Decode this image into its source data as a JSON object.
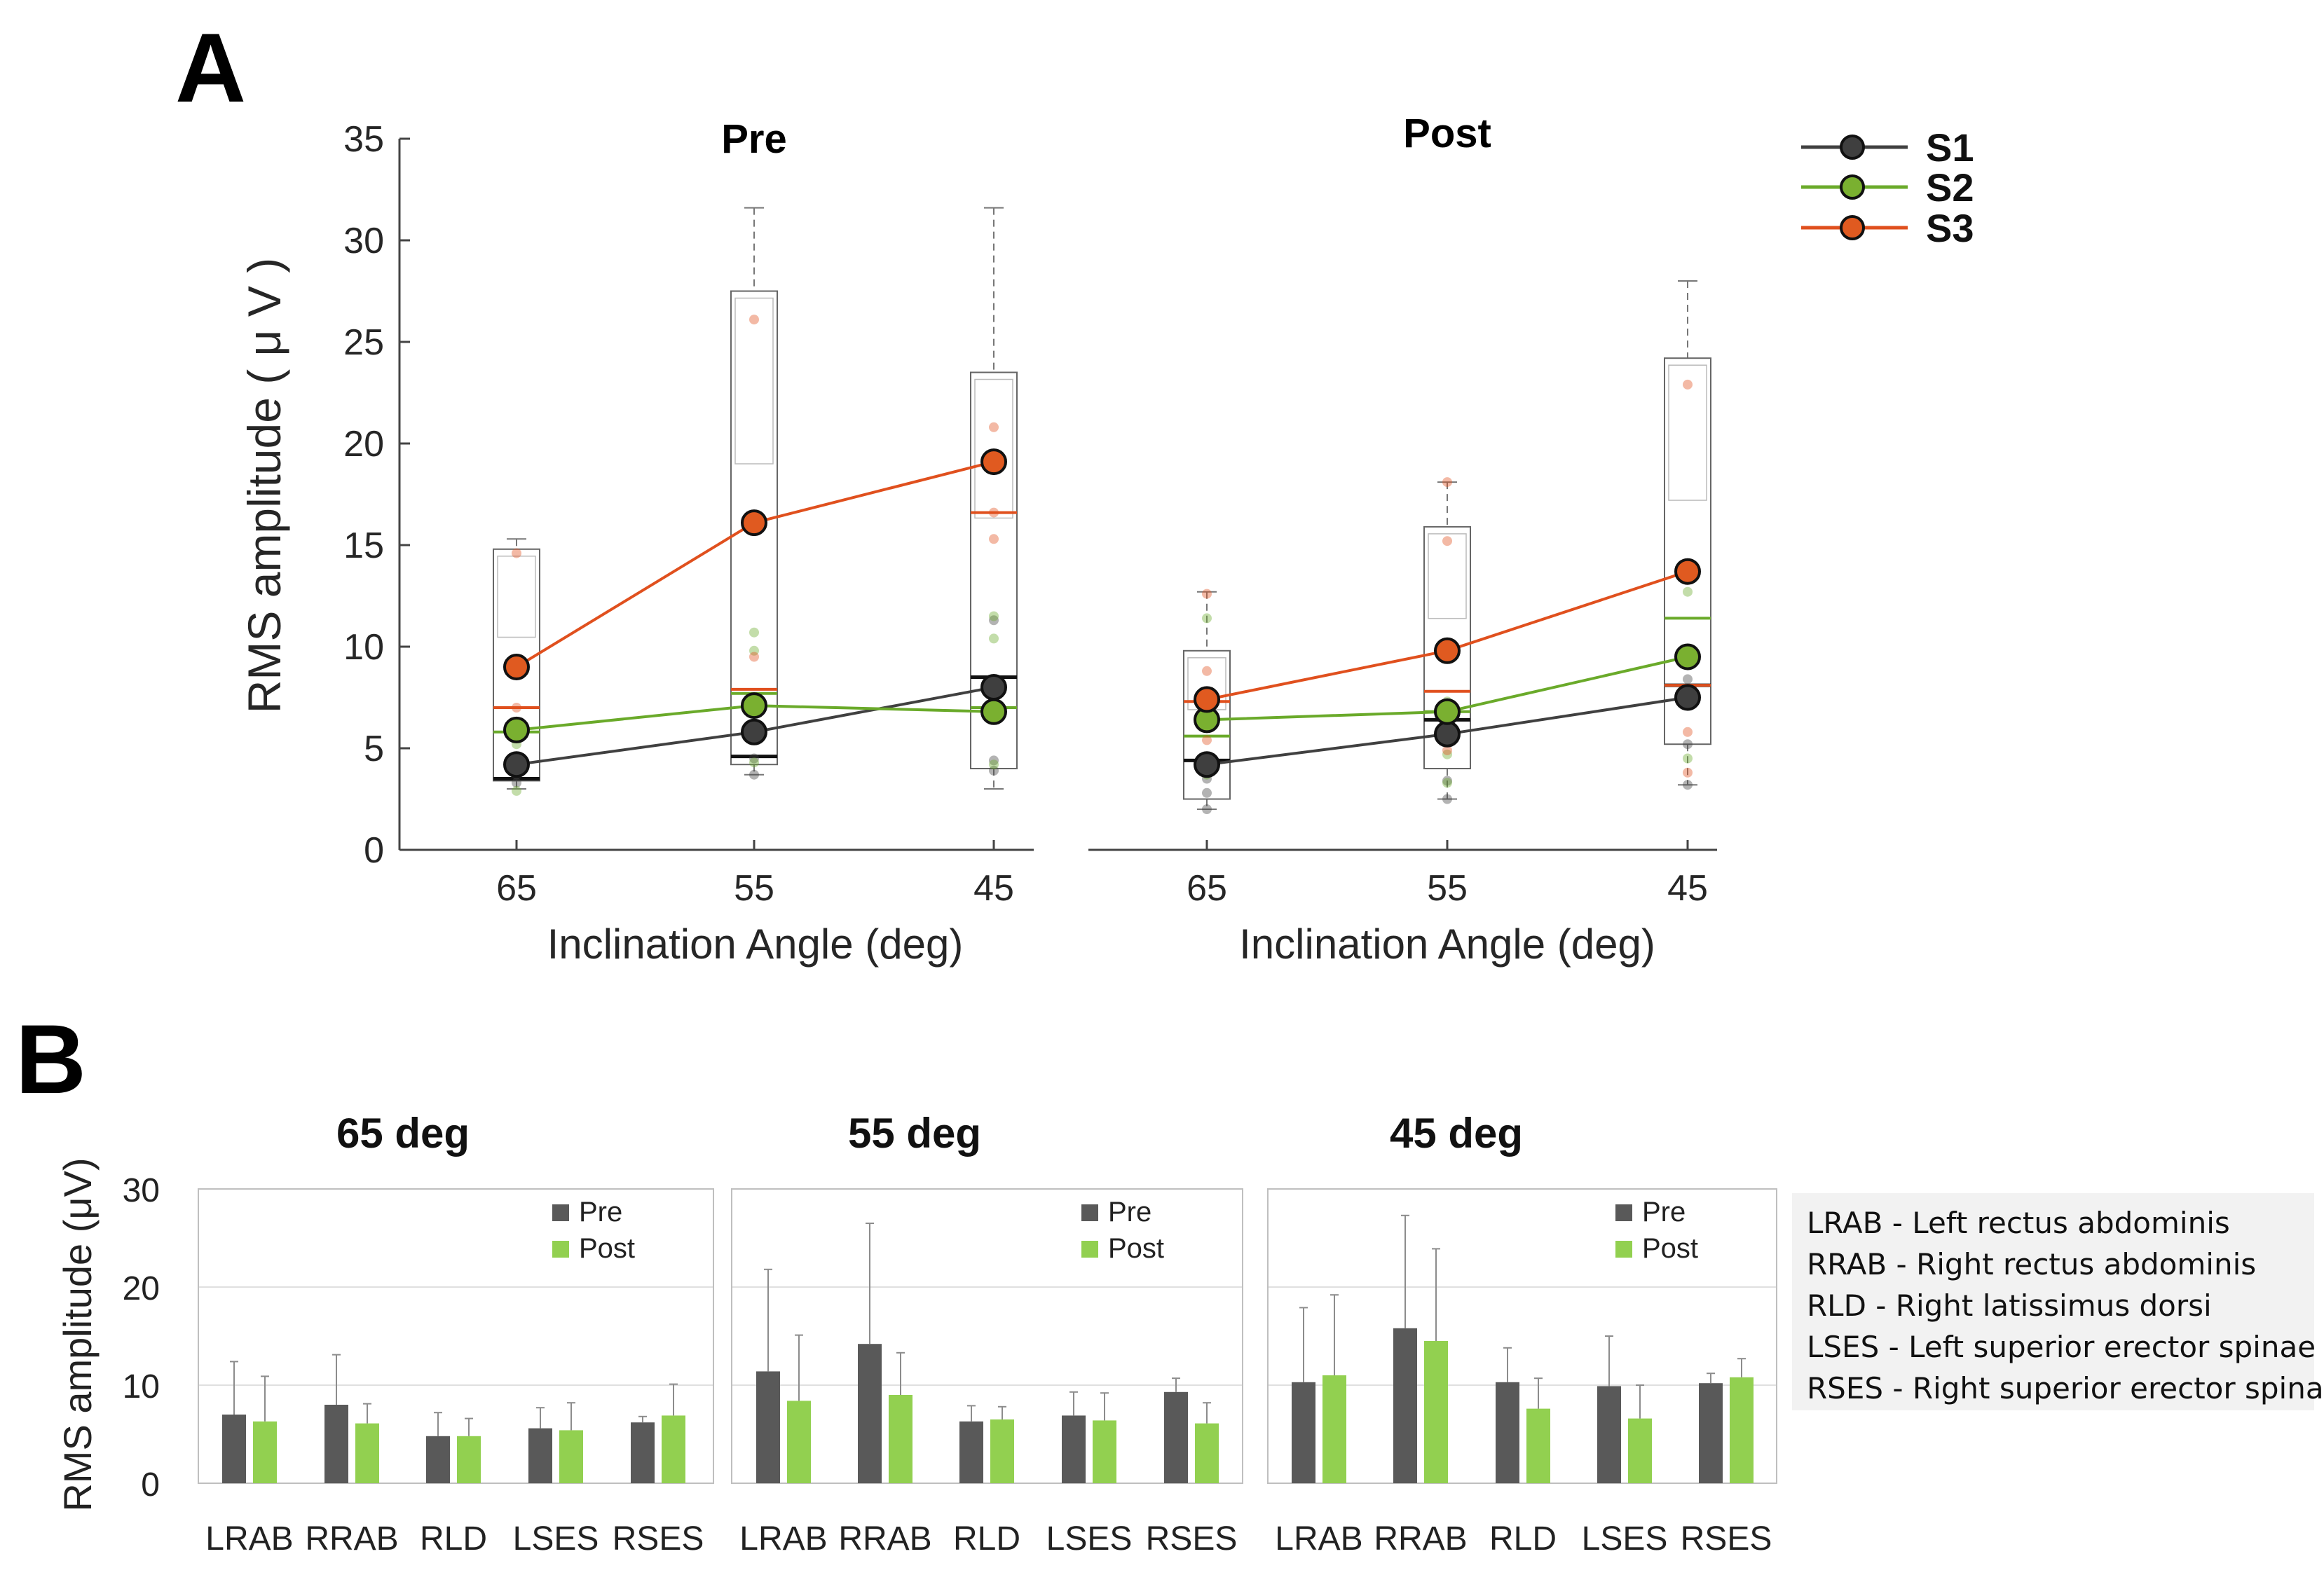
{
  "figure": {
    "panel_a_label": "A",
    "panel_b_label": "B"
  },
  "colors": {
    "s1": "#404040",
    "s2": "#6aaa2a",
    "s3": "#e0501e",
    "pre_bar": "#595959",
    "post_bar": "#92d050",
    "s1_fill": "#3f3f3f",
    "s2_fill": "#7ab030",
    "s3_fill": "#e05a20"
  },
  "chart_data": [
    {
      "id": "panel-a",
      "type": "line",
      "subtype": "box-with-means",
      "ylabel": "RMS amplitude ( μ V )",
      "xlabel": "Inclination Angle (deg)",
      "ylim": [
        0,
        35
      ],
      "yticks": [
        0,
        5,
        10,
        15,
        20,
        25,
        30,
        35
      ],
      "categories": [
        "65",
        "55",
        "45"
      ],
      "legend": [
        "S1",
        "S2",
        "S3"
      ],
      "legend_position": "top-right",
      "groups": [
        {
          "title": "Pre",
          "series": [
            {
              "name": "S1",
              "values": [
                4.2,
                5.8,
                8.0
              ]
            },
            {
              "name": "S2",
              "values": [
                5.9,
                7.1,
                6.8
              ]
            },
            {
              "name": "S3",
              "values": [
                9.0,
                16.1,
                19.1
              ]
            }
          ],
          "boxes": [
            {
              "whisker_low": 3.0,
              "q1": 3.4,
              "q3": 14.8,
              "whisker_high": 15.3,
              "medians": {
                "S1": 3.5,
                "S2": 5.8,
                "S3": 7.0
              },
              "points": {
                "S1": [
                  3.3,
                  3.7,
                  4.5
                ],
                "S2": [
                  2.9,
                  5.2,
                  6.0
                ],
                "S3": [
                  7.0,
                  8.7,
                  14.6
                ]
              }
            },
            {
              "whisker_low": 3.7,
              "q1": 4.2,
              "q3": 27.5,
              "whisker_high": 31.6,
              "medians": {
                "S1": 4.6,
                "S2": 7.7,
                "S3": 7.9
              },
              "points": {
                "S1": [
                  3.7,
                  4.5,
                  6.0
                ],
                "S2": [
                  4.3,
                  9.8,
                  10.7
                ],
                "S3": [
                  7.2,
                  9.5,
                  26.1
                ]
              }
            },
            {
              "whisker_low": 3.0,
              "q1": 4.0,
              "q3": 23.5,
              "whisker_high": 31.6,
              "medians": {
                "S1": 8.5,
                "S2": 7.0,
                "S3": 16.6
              },
              "points": {
                "S1": [
                  3.9,
                  4.4,
                  11.3
                ],
                "S2": [
                  4.2,
                  10.4,
                  11.5
                ],
                "S3": [
                  15.3,
                  16.6,
                  20.8
                ]
              }
            }
          ]
        },
        {
          "title": "Post",
          "series": [
            {
              "name": "S1",
              "values": [
                4.2,
                5.7,
                7.5
              ]
            },
            {
              "name": "S2",
              "values": [
                6.4,
                6.8,
                9.5
              ]
            },
            {
              "name": "S3",
              "values": [
                7.4,
                9.8,
                13.7
              ]
            }
          ],
          "boxes": [
            {
              "whisker_low": 2.0,
              "q1": 2.5,
              "q3": 9.8,
              "whisker_high": 12.7,
              "medians": {
                "S1": 4.4,
                "S2": 5.6,
                "S3": 7.3
              },
              "points": {
                "S1": [
                  2.0,
                  2.8,
                  3.5
                ],
                "S2": [
                  3.7,
                  6.1,
                  11.4
                ],
                "S3": [
                  5.4,
                  8.8,
                  12.6
                ]
              }
            },
            {
              "whisker_low": 2.5,
              "q1": 4.0,
              "q3": 15.9,
              "whisker_high": 18.1,
              "medians": {
                "S1": 6.4,
                "S2": 6.8,
                "S3": 7.8
              },
              "points": {
                "S1": [
                  2.5,
                  3.4,
                  6.4
                ],
                "S2": [
                  3.3,
                  4.7,
                  7.3
                ],
                "S3": [
                  4.9,
                  15.2,
                  18.1
                ]
              }
            },
            {
              "whisker_low": 3.2,
              "q1": 5.2,
              "q3": 24.2,
              "whisker_high": 28.0,
              "medians": {
                "S1": 8.1,
                "S2": 11.4,
                "S3": 8.1
              },
              "points": {
                "S1": [
                  3.2,
                  5.2,
                  8.4
                ],
                "S2": [
                  4.5,
                  9.2,
                  12.7
                ],
                "S3": [
                  3.8,
                  5.8,
                  22.9
                ]
              }
            }
          ]
        }
      ]
    },
    {
      "id": "panel-b",
      "type": "bar",
      "ylabel": "RMS amplitude (μV)",
      "ylim": [
        0,
        30
      ],
      "yticks": [
        0,
        10,
        20,
        30
      ],
      "categories": [
        "LRAB",
        "RRAB",
        "RLD",
        "LSES",
        "RSES"
      ],
      "legend": [
        "Pre",
        "Post"
      ],
      "legend_position": "top-right",
      "groups": [
        {
          "title": "65 deg",
          "series": [
            {
              "name": "Pre",
              "values": [
                7.0,
                8.0,
                4.8,
                5.6,
                6.2
              ],
              "errors": [
                5.4,
                5.1,
                2.4,
                2.1,
                0.6
              ]
            },
            {
              "name": "Post",
              "values": [
                6.3,
                6.1,
                4.8,
                5.4,
                6.9
              ],
              "errors": [
                4.6,
                2.0,
                1.8,
                2.8,
                3.2
              ]
            }
          ]
        },
        {
          "title": "55 deg",
          "series": [
            {
              "name": "Pre",
              "values": [
                11.4,
                14.2,
                6.3,
                6.9,
                9.3
              ],
              "errors": [
                10.4,
                12.3,
                1.6,
                2.4,
                1.4
              ]
            },
            {
              "name": "Post",
              "values": [
                8.4,
                9.0,
                6.5,
                6.4,
                6.1
              ],
              "errors": [
                6.7,
                4.3,
                1.3,
                2.8,
                2.1
              ]
            }
          ]
        },
        {
          "title": "45 deg",
          "series": [
            {
              "name": "Pre",
              "values": [
                10.3,
                15.8,
                10.3,
                9.9,
                10.2
              ],
              "errors": [
                7.6,
                11.5,
                3.5,
                5.1,
                1.0
              ]
            },
            {
              "name": "Post",
              "values": [
                11.0,
                14.5,
                7.6,
                6.6,
                10.8
              ],
              "errors": [
                8.2,
                9.4,
                3.1,
                3.4,
                1.9
              ]
            }
          ]
        }
      ],
      "abbreviations": [
        "LRAB - Left rectus abdominis",
        "RRAB - Right rectus abdominis",
        "RLD - Right latissimus dorsi",
        "LSES - Left superior erector spinae",
        "RSES - Right superior erector spinae"
      ]
    }
  ]
}
